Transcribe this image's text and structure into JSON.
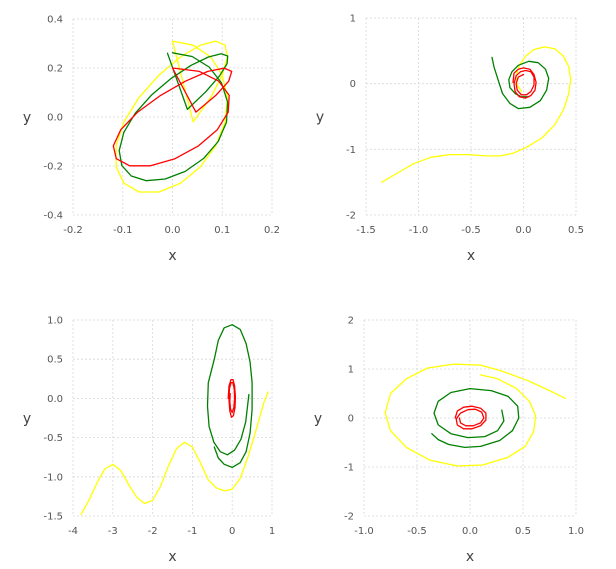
{
  "chart_data": [
    {
      "type": "line",
      "panel": "top-left",
      "xlabel": "x",
      "ylabel": "y",
      "xlim": [
        -0.2,
        0.2
      ],
      "ylim": [
        -0.4,
        0.4
      ],
      "xticks": [
        "-0.2",
        "-0.1",
        "0.0",
        "0.1",
        "0.2"
      ],
      "xtick_values": [
        -0.2,
        -0.1,
        0.0,
        0.1,
        0.2
      ],
      "yticks": [
        "-0.4",
        "-0.2",
        "0.0",
        "0.2",
        "0.4"
      ],
      "ytick_values": [
        -0.4,
        -0.2,
        0.0,
        0.2,
        0.4
      ],
      "grid": true,
      "series": [
        {
          "color": "#ffff00",
          "x": [
            0.0,
            0.0417,
            0.0767,
            0.1001,
            0.1102,
            0.1057,
            0.0868,
            0.0556,
            0.0158,
            -0.0272,
            -0.0672,
            -0.0977,
            -0.1131,
            -0.1135,
            -0.0977,
            -0.0672,
            -0.0272,
            0.0158,
            0.0556,
            0.0868,
            0.1057,
            0.1102,
            0.1001,
            0.0767,
            0.0417,
            0.0
          ],
          "y": [
            0.31,
            0.293,
            0.245,
            0.171,
            0.08,
            -0.02,
            -0.118,
            -0.204,
            -0.27,
            -0.306,
            -0.306,
            -0.27,
            -0.204,
            -0.118,
            -0.02,
            0.08,
            0.171,
            0.245,
            0.293,
            0.31,
            0.293,
            0.245,
            0.171,
            0.08,
            -0.02,
            0.31
          ]
        },
        {
          "color": "#008000",
          "x": [
            0.0,
            0.0393,
            0.0736,
            0.0985,
            0.1108,
            0.1085,
            0.0918,
            0.0628,
            0.0255,
            -0.0147,
            -0.0525,
            -0.0829,
            -0.1019,
            -0.1072,
            -0.0978,
            -0.0749,
            -0.0416,
            -0.0025,
            0.0374,
            0.0722,
            0.0978,
            0.1109,
            0.1098,
            0.0946,
            0.0668,
            0.03,
            -0.01
          ],
          "y": [
            0.262,
            0.247,
            0.204,
            0.139,
            0.061,
            -0.021,
            -0.1,
            -0.169,
            -0.222,
            -0.253,
            -0.26,
            -0.241,
            -0.198,
            -0.137,
            -0.063,
            0.015,
            0.091,
            0.158,
            0.211,
            0.245,
            0.258,
            0.249,
            0.218,
            0.168,
            0.103,
            0.031,
            0.26
          ]
        },
        {
          "color": "#ff0000",
          "x": [
            0.0,
            0.054,
            0.093,
            0.114,
            0.112,
            0.09,
            0.052,
            0.005,
            -0.044,
            -0.086,
            -0.113,
            -0.119,
            -0.104,
            -0.07,
            -0.024,
            0.026,
            0.071,
            0.104,
            0.119,
            0.113,
            0.087,
            0.047,
            0.0
          ],
          "y": [
            0.2,
            0.186,
            0.146,
            0.088,
            0.02,
            -0.052,
            -0.118,
            -0.17,
            -0.199,
            -0.199,
            -0.17,
            -0.118,
            -0.052,
            0.02,
            0.088,
            0.146,
            0.186,
            0.199,
            0.186,
            0.146,
            0.088,
            0.02,
            0.2
          ]
        }
      ]
    },
    {
      "type": "line",
      "panel": "top-right",
      "xlabel": "x",
      "ylabel": "y",
      "xlim": [
        -1.5,
        0.5
      ],
      "ylim": [
        -2.0,
        1.0
      ],
      "xticks": [
        "-1.5",
        "-1.0",
        "-0.5",
        "0.0",
        "0.5"
      ],
      "xtick_values": [
        -1.5,
        -1.0,
        -0.5,
        0.0,
        0.5
      ],
      "yticks": [
        "-2",
        "-1",
        "0",
        "1"
      ],
      "ytick_values": [
        -2,
        -1,
        0,
        1
      ],
      "grid": true,
      "series": [
        {
          "color": "#ffff00",
          "x": [
            -1.35,
            -1.2,
            -1.05,
            -0.88,
            -0.7,
            -0.52,
            -0.36,
            -0.22,
            -0.1,
            0.04,
            0.18,
            0.3,
            0.38,
            0.43,
            0.45,
            0.43,
            0.38,
            0.3,
            0.2,
            0.1,
            0.02,
            -0.04,
            -0.07,
            -0.06,
            -0.02
          ],
          "y": [
            -1.5,
            -1.36,
            -1.22,
            -1.12,
            -1.08,
            -1.08,
            -1.1,
            -1.1,
            -1.06,
            -0.96,
            -0.82,
            -0.62,
            -0.4,
            -0.16,
            0.06,
            0.26,
            0.42,
            0.53,
            0.56,
            0.52,
            0.42,
            0.28,
            0.12,
            -0.02,
            -0.12
          ]
        },
        {
          "color": "#008000",
          "x": [
            -0.3,
            -0.28,
            -0.24,
            -0.2,
            -0.13,
            -0.05,
            0.06,
            0.16,
            0.22,
            0.24,
            0.21,
            0.14,
            0.05,
            -0.05,
            -0.11,
            -0.14,
            -0.13,
            -0.08,
            -0.02,
            0.05
          ],
          "y": [
            0.4,
            0.25,
            0.05,
            -0.15,
            -0.3,
            -0.38,
            -0.36,
            -0.26,
            -0.1,
            0.08,
            0.22,
            0.32,
            0.34,
            0.28,
            0.18,
            0.06,
            -0.06,
            -0.15,
            -0.2,
            -0.2
          ]
        },
        {
          "color": "#ff0000",
          "x": [
            -0.1,
            -0.09,
            -0.05,
            0.0,
            0.06,
            0.1,
            0.12,
            0.11,
            0.07,
            0.02,
            -0.04,
            -0.08,
            -0.09,
            -0.07,
            -0.03,
            0.02,
            0.07,
            0.1,
            0.1,
            0.07,
            0.03,
            -0.02,
            -0.06,
            -0.07,
            -0.05,
            0.0
          ],
          "y": [
            0.02,
            0.16,
            0.22,
            0.24,
            0.22,
            0.14,
            0.02,
            -0.1,
            -0.18,
            -0.22,
            -0.2,
            -0.12,
            0.0,
            0.12,
            0.18,
            0.2,
            0.18,
            0.1,
            -0.02,
            -0.12,
            -0.17,
            -0.17,
            -0.1,
            0.0,
            0.1,
            0.14
          ]
        }
      ]
    },
    {
      "type": "line",
      "panel": "bottom-left",
      "xlabel": "x",
      "ylabel": "y",
      "xlim": [
        -4,
        1
      ],
      "ylim": [
        -1.5,
        1.0
      ],
      "xticks": [
        "-4",
        "-3",
        "-2",
        "-1",
        "0",
        "1"
      ],
      "xtick_values": [
        -4,
        -3,
        -2,
        -1,
        0,
        1
      ],
      "yticks": [
        "-1.5",
        "-1.0",
        "-0.5",
        "0.0",
        "0.5",
        "1.0"
      ],
      "ytick_values": [
        -1.5,
        -1.0,
        -0.5,
        0.0,
        0.5,
        1.0
      ],
      "grid": true,
      "series": [
        {
          "color": "#ffff00",
          "x": [
            -3.8,
            -3.6,
            -3.4,
            -3.2,
            -3.0,
            -2.8,
            -2.6,
            -2.4,
            -2.2,
            -2.0,
            -1.8,
            -1.6,
            -1.4,
            -1.2,
            -1.0,
            -0.8,
            -0.6,
            -0.4,
            -0.2,
            0.0,
            0.2,
            0.4,
            0.6,
            0.8,
            0.9
          ],
          "y": [
            -1.48,
            -1.3,
            -1.08,
            -0.9,
            -0.84,
            -0.92,
            -1.1,
            -1.26,
            -1.34,
            -1.3,
            -1.12,
            -0.86,
            -0.64,
            -0.56,
            -0.62,
            -0.82,
            -1.04,
            -1.14,
            -1.18,
            -1.16,
            -1.02,
            -0.74,
            -0.4,
            -0.05,
            0.08
          ]
        },
        {
          "color": "#008000",
          "x": [
            -0.45,
            -0.35,
            -0.2,
            0.0,
            0.2,
            0.35,
            0.45,
            0.5,
            0.5,
            0.45,
            0.35,
            0.2,
            0.0,
            -0.2,
            -0.35,
            -0.45,
            -0.6,
            -0.62,
            -0.58,
            -0.46,
            -0.3,
            -0.12,
            0.06,
            0.22,
            0.34,
            0.42
          ],
          "y": [
            -0.62,
            -0.76,
            -0.84,
            -0.88,
            -0.82,
            -0.68,
            -0.44,
            -0.14,
            0.2,
            0.46,
            0.7,
            0.88,
            0.94,
            0.9,
            0.74,
            0.5,
            0.2,
            -0.1,
            -0.36,
            -0.56,
            -0.68,
            -0.72,
            -0.66,
            -0.52,
            -0.3,
            0.05
          ]
        },
        {
          "color": "#ff0000",
          "x": [
            -0.1,
            -0.08,
            -0.03,
            0.02,
            0.06,
            0.08,
            0.07,
            0.03,
            -0.02,
            -0.06,
            -0.08,
            -0.07,
            -0.03,
            0.02,
            0.05,
            0.06,
            0.04,
            0.0,
            -0.04,
            -0.06,
            -0.05
          ],
          "y": [
            0.0,
            0.16,
            0.24,
            0.24,
            0.16,
            0.02,
            -0.12,
            -0.22,
            -0.24,
            -0.16,
            -0.02,
            0.12,
            0.2,
            0.2,
            0.12,
            0.0,
            -0.12,
            -0.18,
            -0.14,
            -0.04,
            0.06
          ]
        }
      ]
    },
    {
      "type": "line",
      "panel": "bottom-right",
      "xlabel": "x",
      "ylabel": "y",
      "xlim": [
        -1.0,
        1.0
      ],
      "ylim": [
        -2.0,
        2.0
      ],
      "xticks": [
        "-1.0",
        "-0.5",
        "0.0",
        "0.5",
        "1.0"
      ],
      "xtick_values": [
        -1.0,
        -0.5,
        0.0,
        0.5,
        1.0
      ],
      "yticks": [
        "-2",
        "-1",
        "0",
        "1",
        "2"
      ],
      "ytick_values": [
        -2,
        -1,
        0,
        1,
        2
      ],
      "grid": true,
      "series": [
        {
          "color": "#ffff00",
          "x": [
            0.9,
            0.75,
            0.55,
            0.3,
            0.1,
            -0.15,
            -0.4,
            -0.6,
            -0.75,
            -0.8,
            -0.75,
            -0.6,
            -0.38,
            -0.12,
            0.12,
            0.36,
            0.52,
            0.6,
            0.62,
            0.56,
            0.44,
            0.26,
            0.1
          ],
          "y": [
            0.4,
            0.56,
            0.76,
            0.96,
            1.08,
            1.1,
            1.02,
            0.8,
            0.5,
            0.1,
            -0.26,
            -0.6,
            -0.86,
            -0.98,
            -0.96,
            -0.8,
            -0.58,
            -0.28,
            0.04,
            0.34,
            0.6,
            0.8,
            0.88
          ]
        },
        {
          "color": "#008000",
          "x": [
            -0.36,
            -0.3,
            -0.2,
            -0.05,
            0.1,
            0.28,
            0.4,
            0.46,
            0.45,
            0.36,
            0.2,
            0.0,
            -0.18,
            -0.3,
            -0.34,
            -0.3,
            -0.18,
            -0.02,
            0.14,
            0.26,
            0.32,
            0.3
          ],
          "y": [
            -0.32,
            -0.44,
            -0.54,
            -0.6,
            -0.58,
            -0.46,
            -0.26,
            0.0,
            0.24,
            0.44,
            0.56,
            0.6,
            0.52,
            0.34,
            0.1,
            -0.14,
            -0.32,
            -0.4,
            -0.38,
            -0.26,
            -0.06,
            0.16
          ]
        },
        {
          "color": "#ff0000",
          "x": [
            -0.14,
            -0.12,
            -0.06,
            0.02,
            0.1,
            0.15,
            0.15,
            0.1,
            0.02,
            -0.06,
            -0.12,
            -0.13,
            -0.09,
            -0.02,
            0.05,
            0.11,
            0.13,
            0.1,
            0.03,
            -0.04,
            -0.09,
            -0.1
          ],
          "y": [
            0.0,
            0.14,
            0.22,
            0.24,
            0.2,
            0.1,
            -0.04,
            -0.16,
            -0.22,
            -0.22,
            -0.14,
            -0.02,
            0.1,
            0.17,
            0.18,
            0.12,
            0.0,
            -0.1,
            -0.16,
            -0.16,
            -0.1,
            0.0
          ]
        }
      ]
    }
  ]
}
